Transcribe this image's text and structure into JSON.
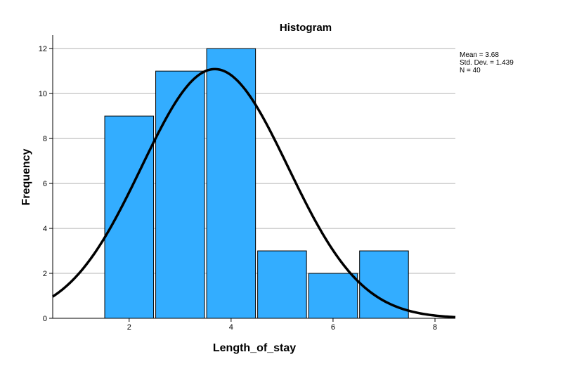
{
  "chart_data": {
    "type": "bar",
    "title": "Histogram",
    "xlabel": "Length_of_stay",
    "ylabel": "Frequency",
    "xlim": [
      0.5,
      8.4
    ],
    "ylim": [
      0,
      12.6
    ],
    "xticks": [
      2,
      4,
      6,
      8
    ],
    "yticks": [
      0,
      2,
      4,
      6,
      8,
      10,
      12
    ],
    "bins": [
      {
        "x": 2,
        "value": 9
      },
      {
        "x": 3,
        "value": 11
      },
      {
        "x": 4,
        "value": 12
      },
      {
        "x": 5,
        "value": 3
      },
      {
        "x": 6,
        "value": 2
      },
      {
        "x": 7,
        "value": 3
      }
    ],
    "bin_width": 1,
    "normal_curve": {
      "mean": 3.68,
      "std_dev": 1.439,
      "n": 40
    },
    "stats": [
      "Mean = 3.68",
      "Std. Dev. = 1.439",
      "N = 40"
    ],
    "grid": true,
    "colors": {
      "bar_fill": "#33adff",
      "bar_stroke": "#000000",
      "grid": "#b4b4b4",
      "curve": "#000000"
    }
  }
}
